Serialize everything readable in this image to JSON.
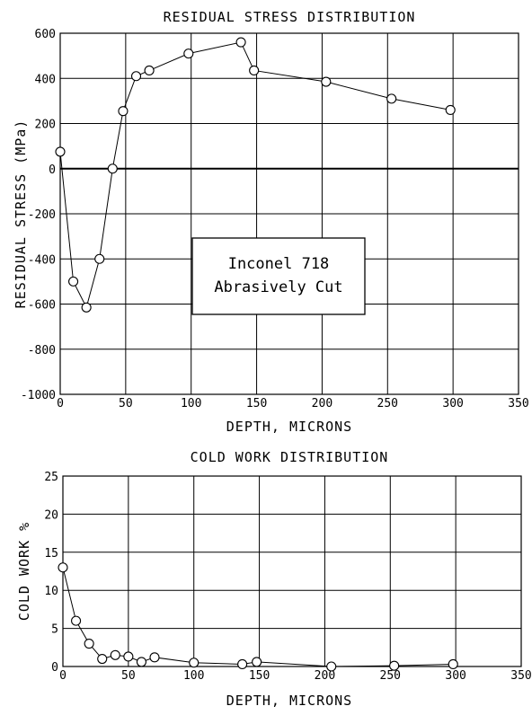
{
  "chart_data": [
    {
      "id": "stress",
      "type": "line",
      "title": "RESIDUAL STRESS DISTRIBUTION",
      "xlabel": "DEPTH, MICRONS",
      "ylabel": "RESIDUAL STRESS (MPa)",
      "xlim": [
        0,
        350
      ],
      "ylim": [
        -1000,
        600
      ],
      "xticks": [
        0,
        50,
        100,
        150,
        200,
        250,
        300,
        350
      ],
      "yticks": [
        600,
        400,
        200,
        0,
        -200,
        -400,
        -600,
        -800,
        -1000
      ],
      "grid": true,
      "zero_line": true,
      "marker": "open-circle",
      "annotation": [
        "Inconel 718",
        "Abrasively Cut"
      ],
      "series": [
        {
          "x": [
            0,
            10,
            20,
            30,
            40,
            48,
            58,
            68,
            98,
            138,
            148,
            203,
            253,
            298
          ],
          "values": [
            75,
            -500,
            -615,
            -400,
            0,
            255,
            410,
            435,
            510,
            560,
            435,
            385,
            310,
            260
          ]
        }
      ]
    },
    {
      "id": "coldwork",
      "type": "line",
      "title": "COLD WORK DISTRIBUTION",
      "xlabel": "DEPTH, MICRONS",
      "ylabel": "COLD WORK %",
      "xlim": [
        0,
        350
      ],
      "ylim": [
        0,
        25
      ],
      "xticks": [
        0,
        50,
        100,
        150,
        200,
        250,
        300,
        350
      ],
      "yticks": [
        25,
        20,
        15,
        10,
        5,
        0
      ],
      "grid": true,
      "marker": "open-circle",
      "series": [
        {
          "x": [
            0,
            10,
            20,
            30,
            40,
            50,
            60,
            70,
            100,
            137,
            148,
            205,
            253,
            298
          ],
          "values": [
            13,
            6,
            3,
            1,
            1.5,
            1.3,
            0.6,
            1.2,
            0.5,
            0.3,
            0.6,
            0,
            0.1,
            0.3
          ]
        }
      ]
    }
  ]
}
